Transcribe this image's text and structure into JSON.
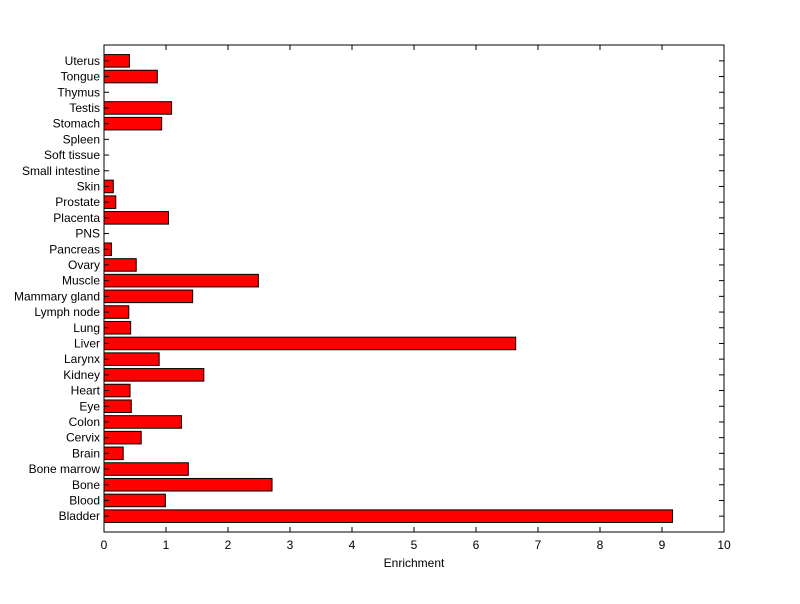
{
  "chart_data": {
    "type": "bar",
    "orientation": "horizontal",
    "title": "",
    "xlabel": "Enrichment",
    "ylabel": "",
    "xlim": [
      0,
      10
    ],
    "xticks": [
      0,
      1,
      2,
      3,
      4,
      5,
      6,
      7,
      8,
      9,
      10
    ],
    "grid": false,
    "bar_color": "#ff0000",
    "edge_color": "#000000",
    "categories": [
      "Bladder",
      "Blood",
      "Bone",
      "Bone marrow",
      "Brain",
      "Cervix",
      "Colon",
      "Eye",
      "Heart",
      "Kidney",
      "Larynx",
      "Liver",
      "Lung",
      "Lymph node",
      "Mammary gland",
      "Muscle",
      "Ovary",
      "Pancreas",
      "PNS",
      "Placenta",
      "Prostate",
      "Skin",
      "Small intestine",
      "Soft tissue",
      "Spleen",
      "Stomach",
      "Testis",
      "Thymus",
      "Tongue",
      "Uterus"
    ],
    "values": [
      9.17,
      0.99,
      2.71,
      1.36,
      0.31,
      0.6,
      1.25,
      0.44,
      0.42,
      1.61,
      0.89,
      6.64,
      0.43,
      0.4,
      1.43,
      2.49,
      0.52,
      0.12,
      0,
      1.04,
      0.19,
      0.15,
      0,
      0,
      0,
      0.93,
      1.09,
      0,
      0.86,
      0.41
    ]
  }
}
